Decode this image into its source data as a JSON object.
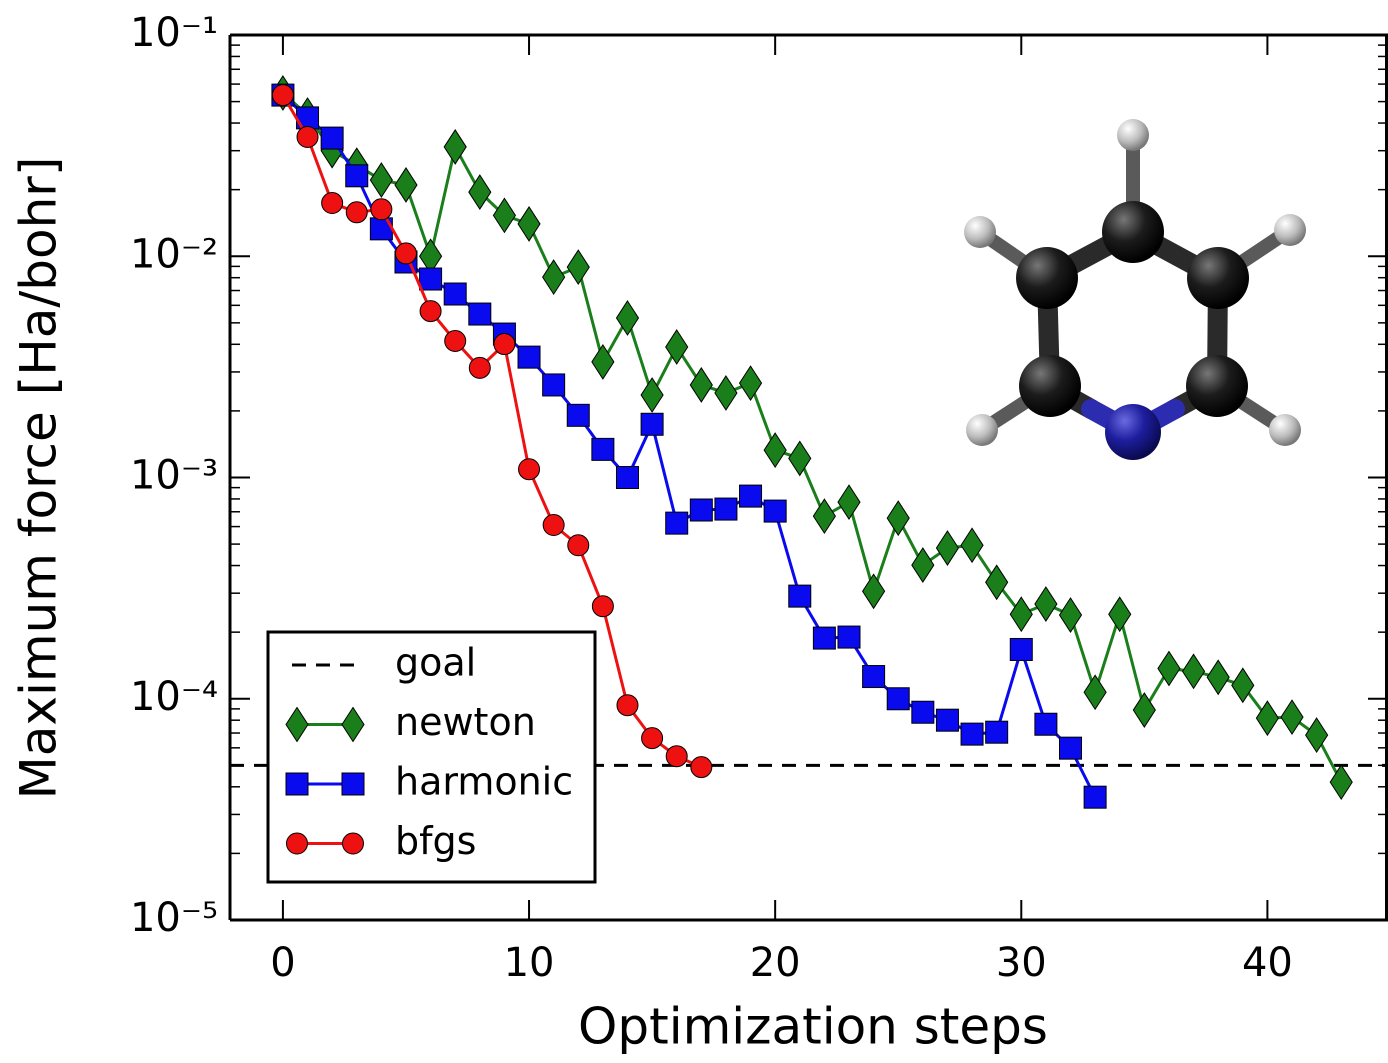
{
  "chart_data": {
    "type": "line",
    "xlabel": "Optimization steps",
    "ylabel": "Maximum force [Ha/bohr]",
    "log_y": true,
    "xlim": [
      -2.15,
      44.9
    ],
    "ylim": [
      1e-05,
      0.1
    ],
    "xticks": [
      0,
      10,
      20,
      30,
      40
    ],
    "yticks": [
      {
        "value": 1e-05,
        "label": "10⁻⁵"
      },
      {
        "value": 0.0001,
        "label": "10⁻⁴"
      },
      {
        "value": 0.001,
        "label": "10⁻³"
      },
      {
        "value": 0.01,
        "label": "10⁻²"
      },
      {
        "value": 0.1,
        "label": "10⁻¹"
      }
    ],
    "yminorticks": [
      2e-05,
      3e-05,
      4e-05,
      5e-05,
      6e-05,
      7e-05,
      8e-05,
      9e-05,
      0.0002,
      0.0003,
      0.0004,
      0.0005,
      0.0006,
      0.0007,
      0.0008,
      0.0009,
      0.002,
      0.003,
      0.004,
      0.005,
      0.006,
      0.007,
      0.008,
      0.009,
      0.02,
      0.03,
      0.04,
      0.05,
      0.06,
      0.07,
      0.08,
      0.09
    ],
    "legend_position": "lower left",
    "hlines": [
      {
        "name": "goal",
        "value": 5e-05,
        "color": "#000000",
        "dashed": true
      }
    ],
    "series": [
      {
        "name": "newton",
        "color": "#1a7f1a",
        "marker": "diamond",
        "x": [
          0,
          1,
          2,
          3,
          4,
          5,
          6,
          7,
          8,
          9,
          10,
          11,
          12,
          13,
          14,
          15,
          16,
          17,
          18,
          19,
          20,
          21,
          22,
          23,
          24,
          25,
          26,
          27,
          28,
          29,
          30,
          31,
          32,
          33,
          34,
          35,
          36,
          37,
          38,
          39,
          40,
          41,
          42,
          43
        ],
        "values": [
          0.0547,
          0.0435,
          0.03,
          0.0258,
          0.0221,
          0.021,
          0.01,
          0.0312,
          0.0195,
          0.0153,
          0.014,
          0.00805,
          0.00893,
          0.00333,
          0.00526,
          0.00236,
          0.00389,
          0.00262,
          0.00241,
          0.00267,
          0.00133,
          0.00122,
          0.000669,
          0.000774,
          0.000306,
          0.000655,
          0.000402,
          0.00048,
          0.000494,
          0.000336,
          0.000241,
          0.000268,
          0.000239,
          0.000107,
          0.000241,
          8.89e-05,
          0.000137,
          0.000133,
          0.000125,
          0.000115,
          8.17e-05,
          8.26e-05,
          6.85e-05,
          4.2e-05
        ]
      },
      {
        "name": "harmonic",
        "color": "#0a0aee",
        "marker": "square",
        "x": [
          0,
          1,
          2,
          3,
          4,
          5,
          6,
          7,
          8,
          9,
          10,
          11,
          12,
          13,
          14,
          15,
          16,
          17,
          18,
          19,
          20,
          21,
          22,
          23,
          24,
          25,
          26,
          27,
          28,
          29,
          30,
          31,
          32,
          33
        ],
        "values": [
          0.0535,
          0.0422,
          0.0342,
          0.0231,
          0.0133,
          0.00942,
          0.00789,
          0.00675,
          0.00548,
          0.00445,
          0.0035,
          0.00262,
          0.00191,
          0.00134,
          0.001,
          0.00174,
          0.000622,
          0.000713,
          0.00072,
          0.000824,
          0.000705,
          0.000291,
          0.000188,
          0.00019,
          0.000126,
          0.0001,
          8.69e-05,
          8e-05,
          6.92e-05,
          7.06e-05,
          0.000167,
          7.67e-05,
          5.98e-05,
          3.59e-05
        ]
      },
      {
        "name": "bfgs",
        "color": "#ee1111",
        "marker": "circle",
        "x": [
          0,
          1,
          2,
          3,
          4,
          5,
          6,
          7,
          8,
          9,
          10,
          11,
          12,
          13,
          14,
          15,
          16,
          17
        ],
        "values": [
          0.0535,
          0.0346,
          0.0174,
          0.0158,
          0.0163,
          0.0103,
          0.00565,
          0.00414,
          0.00313,
          0.00401,
          0.00109,
          0.00061,
          0.000494,
          0.000262,
          9.35e-05,
          6.64e-05,
          5.5e-05,
          4.91e-05
        ]
      }
    ]
  }
}
